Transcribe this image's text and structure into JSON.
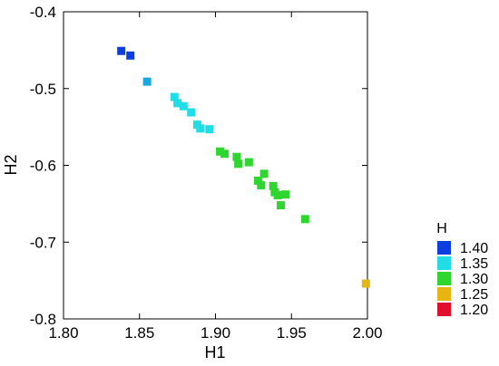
{
  "chart_data": {
    "type": "scatter",
    "xlabel": "H1",
    "ylabel": "H2",
    "xlim": [
      1.8,
      2.0
    ],
    "ylim": [
      -0.8,
      -0.4
    ],
    "x_ticks": [
      "1.80",
      "1.85",
      "1.90",
      "1.95",
      "2.00"
    ],
    "y_ticks": [
      "-0.4",
      "-0.5",
      "-0.6",
      "-0.7",
      "-0.8"
    ],
    "grid": false,
    "legend_position": "bottom-right",
    "legend": {
      "title": "H",
      "entries": [
        {
          "label": "1.40",
          "color": "#0d3fe0"
        },
        {
          "label": "1.35",
          "color": "#22dce6"
        },
        {
          "label": "1.30",
          "color": "#2fd62f"
        },
        {
          "label": "1.25",
          "color": "#e6b511"
        },
        {
          "label": "1.20",
          "color": "#e0102d"
        }
      ]
    },
    "points": [
      {
        "x": 1.838,
        "y": -0.451,
        "color": "#0d3fe0"
      },
      {
        "x": 1.844,
        "y": -0.457,
        "color": "#0d3fe0"
      },
      {
        "x": 1.855,
        "y": -0.491,
        "color": "#1aa6df"
      },
      {
        "x": 1.873,
        "y": -0.511,
        "color": "#22dce6"
      },
      {
        "x": 1.875,
        "y": -0.519,
        "color": "#22dce6"
      },
      {
        "x": 1.879,
        "y": -0.523,
        "color": "#22dce6"
      },
      {
        "x": 1.884,
        "y": -0.531,
        "color": "#22dce6"
      },
      {
        "x": 1.888,
        "y": -0.547,
        "color": "#22dce6"
      },
      {
        "x": 1.89,
        "y": -0.552,
        "color": "#22dce6"
      },
      {
        "x": 1.896,
        "y": -0.553,
        "color": "#22dce6"
      },
      {
        "x": 1.903,
        "y": -0.582,
        "color": "#2fd62f"
      },
      {
        "x": 1.906,
        "y": -0.585,
        "color": "#2fd62f"
      },
      {
        "x": 1.914,
        "y": -0.589,
        "color": "#2fd62f"
      },
      {
        "x": 1.915,
        "y": -0.598,
        "color": "#2fd62f"
      },
      {
        "x": 1.922,
        "y": -0.596,
        "color": "#2fd62f"
      },
      {
        "x": 1.932,
        "y": -0.611,
        "color": "#2fd62f"
      },
      {
        "x": 1.928,
        "y": -0.62,
        "color": "#2fd62f"
      },
      {
        "x": 1.93,
        "y": -0.626,
        "color": "#2fd62f"
      },
      {
        "x": 1.938,
        "y": -0.627,
        "color": "#2fd62f"
      },
      {
        "x": 1.939,
        "y": -0.635,
        "color": "#2fd62f"
      },
      {
        "x": 1.941,
        "y": -0.639,
        "color": "#2fd62f"
      },
      {
        "x": 1.946,
        "y": -0.638,
        "color": "#2fd62f"
      },
      {
        "x": 1.943,
        "y": -0.652,
        "color": "#2fd62f"
      },
      {
        "x": 1.959,
        "y": -0.67,
        "color": "#2fd62f"
      },
      {
        "x": 1.999,
        "y": -0.754,
        "color": "#e6b511"
      }
    ]
  }
}
